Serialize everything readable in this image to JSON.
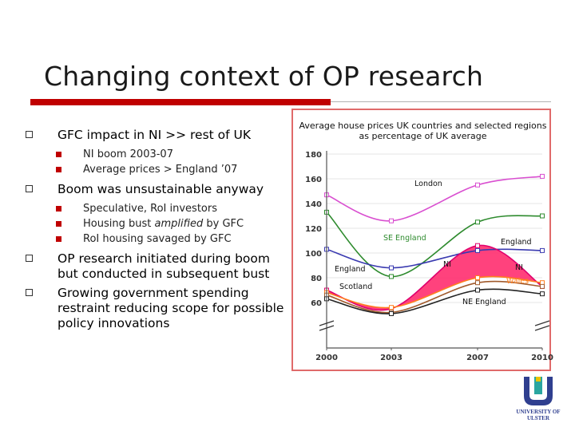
{
  "slide": {
    "title": "Changing context of OP research",
    "bullets": [
      {
        "text": "GFC impact in NI >> rest of UK",
        "sub": [
          "NI boom 2003-07",
          "Average prices > England ’07"
        ]
      },
      {
        "text": "Boom was unsustainable anyway",
        "sub_parts": [
          {
            "a": "Speculative, RoI investors",
            "i": "",
            "b": ""
          },
          {
            "a": "Housing bust ",
            "i": "amplified",
            "b": " by GFC"
          },
          {
            "a": "RoI housing savaged by GFC",
            "i": "",
            "b": ""
          }
        ]
      },
      {
        "text": "OP research initiated during boom but conducted in subsequent bust"
      },
      {
        "text": "Growing government spending restraint reducing scope for possible policy innovations"
      }
    ]
  },
  "chart_data": {
    "type": "line",
    "title": "Average house prices UK countries and selected regions as percentage of UK average",
    "x": [
      2000,
      2003,
      2007,
      2010
    ],
    "x_tick_labels": [
      "2000",
      "2003",
      "2007",
      "2010"
    ],
    "y_tick_labels": [
      "60",
      "80",
      "100",
      "120",
      "140",
      "160",
      "180"
    ],
    "ylim": [
      60,
      180
    ],
    "series": [
      {
        "name": "London",
        "values": [
          147,
          126,
          155,
          162
        ],
        "color": "#d94fd0"
      },
      {
        "name": "SE England",
        "values": [
          133,
          81,
          125,
          130
        ],
        "color": "#2e8b2e"
      },
      {
        "name": "England",
        "values": [
          103,
          88,
          102,
          102
        ],
        "color": "#3a3ab0"
      },
      {
        "name": "NI",
        "values": [
          70,
          55,
          106,
          73
        ],
        "color": "#e0006e"
      },
      {
        "name": "Wales",
        "values": [
          68,
          56,
          80,
          76
        ],
        "color": "#ff7f1e"
      },
      {
        "name": "Scotland",
        "values": [
          66,
          52,
          76,
          73
        ],
        "color": "#a05a2c"
      },
      {
        "name": "NE England",
        "values": [
          63,
          51,
          70,
          67
        ],
        "color": "#222222"
      }
    ],
    "labels": {
      "london": "London",
      "se_england": "SE England",
      "england_right": "England",
      "england_left": "England",
      "ni_mid": "NI",
      "ni_right": "NI",
      "wales": "Wales",
      "scotland": "Scotland",
      "ne_england": "NE England"
    },
    "fill_color": "#ff2d6f"
  },
  "logo": {
    "name": "UNIVERSITY OF ULSTER",
    "colors": {
      "blue": "#2f3f8f",
      "teal": "#2aa6a0",
      "yellow": "#e8c400"
    }
  }
}
